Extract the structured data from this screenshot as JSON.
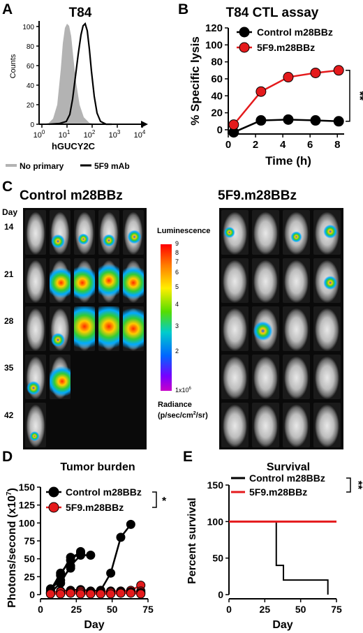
{
  "panels": {
    "a": "A",
    "b": "B",
    "c": "C",
    "d": "D",
    "e": "E"
  },
  "panel_a": {
    "title": "T84",
    "xlabel": "hGUCY2C",
    "ylabel": "Counts",
    "yticks": [
      "0",
      "20",
      "40",
      "60",
      "80",
      "100"
    ],
    "xticks": [
      {
        "b": "10",
        "e": "0"
      },
      {
        "b": "10",
        "e": "1"
      },
      {
        "b": "10",
        "e": "2"
      },
      {
        "b": "10",
        "e": "3"
      },
      {
        "b": "10",
        "e": "4"
      }
    ],
    "legend": {
      "no_primary": "No primary",
      "mab": "5F9 mAb"
    },
    "colors": {
      "no_primary": "#b3b3b3",
      "mab": "#000000"
    }
  },
  "panel_c": {
    "groups": {
      "control": "Control m28BBz",
      "treated": "5F9.m28BBz"
    },
    "day_header": "Day",
    "days": [
      "14",
      "21",
      "28",
      "35",
      "42"
    ],
    "scale": {
      "title": "Luminescence",
      "ticks": [
        "9",
        "8",
        "7",
        "6",
        "5",
        "4",
        "3",
        "2"
      ],
      "bottom": "1x10",
      "bottom_exp": "6",
      "radiance": "Radiance",
      "units": "(p/sec/cm",
      "units_exp": "2",
      "units_tail": "/sr)"
    }
  },
  "chart_data": [
    {
      "type": "line",
      "panel": "B",
      "title": "T84 CTL assay",
      "xlabel": "Time (h)",
      "ylabel": "% Specific lysis",
      "xlim": [
        0,
        8.5
      ],
      "ylim": [
        -5,
        120
      ],
      "xticks": [
        0,
        2,
        4,
        6,
        8
      ],
      "yticks": [
        0,
        20,
        40,
        60,
        80,
        100,
        120
      ],
      "series": [
        {
          "name": "Control m28BBz",
          "color": "#000000",
          "x": [
            0.4,
            2.4,
            4.4,
            6.4,
            8.1
          ],
          "y": [
            -3,
            11,
            12,
            11,
            10
          ]
        },
        {
          "name": "5F9.m28BBz",
          "color": "#e41a1c",
          "x": [
            0.4,
            2.4,
            4.4,
            6.4,
            8.1
          ],
          "y": [
            6,
            45,
            62,
            67,
            70
          ]
        }
      ],
      "annotation": "**"
    },
    {
      "type": "line",
      "panel": "D",
      "title": "Tumor burden",
      "xlabel": "Day",
      "ylabel": "Photons/second (x10",
      "ylabel_exp": "7",
      "ylabel_tail": ")",
      "xlim": [
        0,
        75
      ],
      "ylim": [
        0,
        150
      ],
      "xticks": [
        0,
        25,
        50,
        75
      ],
      "yticks": [
        0,
        25,
        50,
        75,
        100,
        125,
        150
      ],
      "legend": [
        "Control m28BBz",
        "5F9.m28BBz"
      ],
      "colors": {
        "control": "#000000",
        "treated": "#e41a1c"
      },
      "annotation": "*",
      "control_mice": [
        {
          "x": [
            7,
            14,
            21,
            28
          ],
          "y": [
            6,
            30,
            48,
            60
          ]
        },
        {
          "x": [
            7,
            14,
            21,
            28
          ],
          "y": [
            4,
            27,
            52,
            58
          ]
        },
        {
          "x": [
            7,
            14,
            21,
            28,
            35
          ],
          "y": [
            3,
            16,
            40,
            55,
            55
          ]
        },
        {
          "x": [
            7,
            14,
            21
          ],
          "y": [
            8,
            20,
            37
          ]
        },
        {
          "x": [
            7,
            14,
            21,
            28,
            35,
            42,
            49,
            56,
            63
          ],
          "y": [
            2,
            5,
            6,
            7,
            5,
            6,
            30,
            80,
            98
          ]
        }
      ],
      "treated_mice": [
        {
          "x": [
            7,
            14,
            21,
            28,
            35,
            42,
            49,
            56,
            63,
            70
          ],
          "y": [
            3,
            4,
            5,
            5,
            4,
            4,
            5,
            5,
            6,
            13
          ]
        },
        {
          "x": [
            7,
            14,
            21,
            28,
            35,
            42,
            49,
            56,
            63,
            70
          ],
          "y": [
            2,
            3,
            4,
            3,
            3,
            3,
            4,
            4,
            4,
            5
          ]
        },
        {
          "x": [
            7,
            14,
            21,
            28,
            35,
            42,
            49,
            56,
            63,
            70
          ],
          "y": [
            1,
            2,
            2,
            2,
            2,
            2,
            2,
            3,
            3,
            3
          ]
        },
        {
          "x": [
            7,
            14,
            21,
            28,
            35,
            42,
            49,
            56,
            63,
            70
          ],
          "y": [
            2,
            4,
            3,
            3,
            2,
            2,
            3,
            2,
            3,
            2
          ]
        },
        {
          "x": [
            7,
            14,
            21,
            28,
            35,
            42,
            49,
            56,
            63,
            70
          ],
          "y": [
            1,
            1,
            2,
            1,
            1,
            1,
            1,
            2,
            2,
            1
          ]
        }
      ]
    },
    {
      "type": "line",
      "panel": "E",
      "title": "Survival",
      "xlabel": "Day",
      "ylabel": "Percent survival",
      "xlim": [
        0,
        75
      ],
      "ylim": [
        0,
        150
      ],
      "xticks": [
        0,
        25,
        50,
        75
      ],
      "yticks": [
        0,
        50,
        100,
        150
      ],
      "series": [
        {
          "name": "Control m28BBz",
          "color": "#000000",
          "step": true,
          "x": [
            0,
            33,
            33,
            38,
            38,
            42,
            42,
            69,
            69
          ],
          "y": [
            100,
            100,
            40,
            40,
            20,
            20,
            20,
            20,
            0
          ]
        },
        {
          "name": "5F9.m28BBz",
          "color": "#e41a1c",
          "step": true,
          "x": [
            0,
            75
          ],
          "y": [
            100,
            100
          ]
        }
      ],
      "annotation": "**"
    }
  ]
}
